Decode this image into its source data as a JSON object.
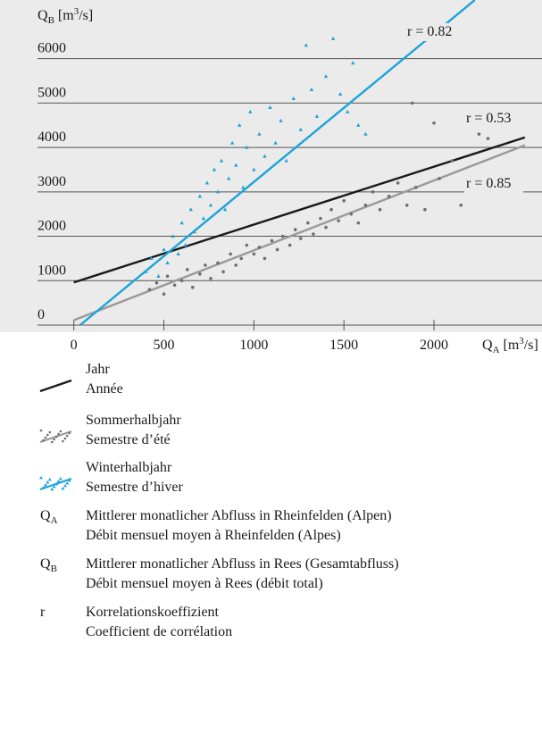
{
  "chart_data": {
    "type": "scatter",
    "y_label": {
      "symbol": "Q",
      "sub": "B",
      "pre": " [m",
      "sup": "3",
      "post": "/s]"
    },
    "x_label": {
      "symbol": "Q",
      "sub": "A",
      "pre": " [m",
      "sup": "3",
      "post": "/s]"
    },
    "xlim": [
      -410,
      2600
    ],
    "ylim": [
      0,
      7320
    ],
    "xticks": [
      0,
      500,
      1000,
      1500,
      2000
    ],
    "yticks": [
      0,
      1000,
      2000,
      3000,
      4000,
      5000,
      6000
    ],
    "grid": true,
    "series": [
      {
        "name": "Sommerhalbjahr",
        "name_fr": "Semestre d’été",
        "kind": "points",
        "marker": "circle",
        "color": "#6e6e6e",
        "x": [
          420,
          460,
          500,
          520,
          560,
          600,
          630,
          660,
          700,
          730,
          760,
          800,
          830,
          870,
          900,
          930,
          960,
          1000,
          1030,
          1060,
          1100,
          1130,
          1160,
          1200,
          1230,
          1260,
          1300,
          1330,
          1370,
          1400,
          1430,
          1470,
          1500,
          1540,
          1580,
          1620,
          1660,
          1700,
          1750,
          1800,
          1850,
          1900,
          1950,
          2030,
          2100,
          2150,
          2180,
          2250,
          2300,
          1880,
          2000
        ],
        "values": [
          800,
          950,
          700,
          1100,
          900,
          1000,
          1250,
          850,
          1150,
          1350,
          1050,
          1400,
          1200,
          1600,
          1350,
          1500,
          1800,
          1600,
          1750,
          1500,
          1900,
          1700,
          2000,
          1800,
          2150,
          1950,
          2300,
          2050,
          2400,
          2200,
          2600,
          2350,
          2800,
          2500,
          2300,
          2700,
          3000,
          2600,
          2900,
          3200,
          2700,
          3100,
          2600,
          3300,
          3700,
          2700,
          4600,
          4300,
          4200,
          5000,
          4550
        ]
      },
      {
        "name": "Winterhalbjahr",
        "name_fr": "Semestre d’hiver",
        "kind": "points",
        "marker": "triangle",
        "color": "#1ca3d8",
        "x": [
          400,
          430,
          470,
          500,
          520,
          550,
          580,
          600,
          620,
          650,
          670,
          700,
          720,
          740,
          760,
          780,
          800,
          820,
          840,
          860,
          880,
          900,
          920,
          940,
          960,
          980,
          1000,
          1030,
          1060,
          1090,
          1120,
          1150,
          1180,
          1220,
          1260,
          1290,
          1320,
          1350,
          1400,
          1440,
          1480,
          1520,
          1550,
          1580,
          1620
        ],
        "values": [
          1200,
          1500,
          1100,
          1700,
          1400,
          2000,
          1600,
          2300,
          1800,
          2600,
          2100,
          2900,
          2400,
          3200,
          2700,
          3500,
          3000,
          3700,
          2600,
          3300,
          4100,
          3600,
          4500,
          3100,
          4000,
          4800,
          3500,
          4300,
          3800,
          4900,
          4100,
          4600,
          3700,
          5100,
          4400,
          6300,
          5300,
          4700,
          5600,
          6450,
          5200,
          4800,
          5900,
          4500,
          4300
        ]
      },
      {
        "name": "Jahr",
        "name_fr": "Année",
        "kind": "line",
        "color": "#1a1a1a",
        "x": [
          0,
          2505
        ],
        "values": [
          960,
          4225
        ],
        "r": "r = 0.53"
      },
      {
        "name": "Sommer",
        "kind": "line",
        "color": "#9a9a9a",
        "x": [
          0,
          2505
        ],
        "values": [
          110,
          4050
        ],
        "r": "r = 0.85"
      },
      {
        "name": "Winter",
        "kind": "line",
        "color": "#1ca3d8",
        "x": [
          35,
          2227
        ],
        "values": [
          0,
          7320
        ],
        "r": "r = 0.82"
      }
    ],
    "definitions": [
      {
        "symbol": "Q",
        "sub": "A",
        "de": "Mittlerer monatlicher Abfluss in Rheinfelden (Alpen)",
        "fr": "Débit mensuel moyen à Rheinfelden (Alpes)"
      },
      {
        "symbol": "Q",
        "sub": "B",
        "de": "Mittlerer monatlicher Abfluss in Rees (Gesamtabfluss)",
        "fr": "Débit mensuel moyen à Rees (débit total)"
      },
      {
        "symbol": "r",
        "de": "Korrelationskoeffizient",
        "fr": "Coefficient de corrélation"
      }
    ]
  }
}
